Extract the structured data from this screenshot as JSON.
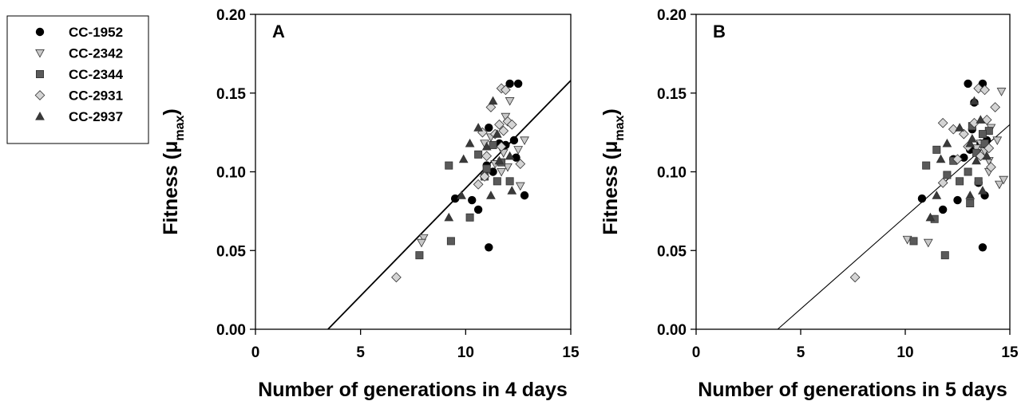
{
  "legend": {
    "items": [
      {
        "name": "CC-1952",
        "marker": "circle",
        "fill": "#000000"
      },
      {
        "name": "CC-2342",
        "marker": "triangle-down",
        "fill": "#c8c8c8"
      },
      {
        "name": "CC-2344",
        "marker": "square",
        "fill": "#5a5a5a"
      },
      {
        "name": "CC-2931",
        "marker": "diamond",
        "fill": "#d4d4d4"
      },
      {
        "name": "CC-2937",
        "marker": "triangle-up",
        "fill": "#3a3a3a"
      }
    ]
  },
  "chart_data": [
    {
      "type": "scatter",
      "panel_label": "A",
      "xlabel": "Number of generations in 4 days",
      "ylabel": "Fitness (μ",
      "ylabel_sub": "max",
      "ylabel_close": ")",
      "xlim": [
        0,
        15
      ],
      "ylim": [
        0,
        0.2
      ],
      "x_ticks": [
        0,
        5,
        10,
        15
      ],
      "y_ticks": [
        0,
        0.05,
        0.1,
        0.15,
        0.2
      ],
      "x_tick_labels": [
        "0",
        "5",
        "10",
        "15"
      ],
      "y_tick_labels": [
        "0.00",
        "0.05",
        "0.10",
        "0.15",
        "0.20"
      ],
      "regression": {
        "x1": 3.45,
        "y1": 0.0,
        "x2": 15.0,
        "y2": 0.158
      },
      "grid": false,
      "series": [
        {
          "name": "CC-1952",
          "points": [
            [
              12.1,
              0.156
            ],
            [
              12.5,
              0.156
            ],
            [
              11.1,
              0.128
            ],
            [
              12.3,
              0.12
            ],
            [
              11.6,
              0.118
            ],
            [
              11.0,
              0.104
            ],
            [
              11.3,
              0.1
            ],
            [
              9.5,
              0.083
            ],
            [
              10.3,
              0.082
            ],
            [
              10.6,
              0.076
            ],
            [
              12.8,
              0.085
            ],
            [
              11.1,
              0.052
            ],
            [
              12.4,
              0.109
            ],
            [
              11.9,
              0.117
            ]
          ]
        },
        {
          "name": "CC-2342",
          "points": [
            [
              12.1,
              0.145
            ],
            [
              11.9,
              0.135
            ],
            [
              12.8,
              0.12
            ],
            [
              12.5,
              0.114
            ],
            [
              11.8,
              0.112
            ],
            [
              12.0,
              0.103
            ],
            [
              11.4,
              0.105
            ],
            [
              10.9,
              0.118
            ],
            [
              12.6,
              0.091
            ],
            [
              11.7,
              0.1
            ],
            [
              8.0,
              0.058
            ],
            [
              7.9,
              0.055
            ],
            [
              11.2,
              0.122
            ]
          ]
        },
        {
          "name": "CC-2344",
          "points": [
            [
              9.2,
              0.104
            ],
            [
              10.6,
              0.111
            ],
            [
              10.9,
              0.097
            ],
            [
              11.3,
              0.117
            ],
            [
              11.7,
              0.106
            ],
            [
              12.1,
              0.094
            ],
            [
              11.0,
              0.102
            ],
            [
              10.2,
              0.071
            ],
            [
              9.3,
              0.056
            ],
            [
              7.8,
              0.047
            ],
            [
              11.5,
              0.094
            ]
          ]
        },
        {
          "name": "CC-2931",
          "points": [
            [
              11.7,
              0.153
            ],
            [
              11.9,
              0.152
            ],
            [
              11.2,
              0.141
            ],
            [
              11.6,
              0.13
            ],
            [
              12.0,
              0.132
            ],
            [
              11.8,
              0.126
            ],
            [
              11.4,
              0.124
            ],
            [
              10.8,
              0.125
            ],
            [
              12.2,
              0.13
            ],
            [
              11.7,
              0.116
            ],
            [
              12.6,
              0.105
            ],
            [
              10.9,
              0.097
            ],
            [
              10.6,
              0.092
            ],
            [
              6.7,
              0.033
            ],
            [
              11.0,
              0.11
            ]
          ]
        },
        {
          "name": "CC-2937",
          "points": [
            [
              11.3,
              0.145
            ],
            [
              10.6,
              0.128
            ],
            [
              11.5,
              0.124
            ],
            [
              10.2,
              0.118
            ],
            [
              11.0,
              0.116
            ],
            [
              9.9,
              0.108
            ],
            [
              12.1,
              0.11
            ],
            [
              11.2,
              0.085
            ],
            [
              12.2,
              0.088
            ],
            [
              9.8,
              0.085
            ],
            [
              9.2,
              0.071
            ],
            [
              11.6,
              0.107
            ]
          ]
        }
      ]
    },
    {
      "type": "scatter",
      "panel_label": "B",
      "xlabel": "Number of generations in 5 days",
      "ylabel": "Fitness (μ",
      "ylabel_sub": "max",
      "ylabel_close": ")",
      "xlim": [
        0,
        15
      ],
      "ylim": [
        0,
        0.2
      ],
      "x_ticks": [
        0,
        5,
        10,
        15
      ],
      "y_ticks": [
        0,
        0.05,
        0.1,
        0.15,
        0.2
      ],
      "x_tick_labels": [
        "0",
        "5",
        "10",
        "15"
      ],
      "y_tick_labels": [
        "0.00",
        "0.05",
        "0.10",
        "0.15",
        "0.20"
      ],
      "regression": {
        "x1": 3.9,
        "y1": 0.0,
        "x2": 15.0,
        "y2": 0.13
      },
      "grid": false,
      "series": [
        {
          "name": "CC-1952",
          "points": [
            [
              13.0,
              0.156
            ],
            [
              13.7,
              0.156
            ],
            [
              13.3,
              0.144
            ],
            [
              13.2,
              0.127
            ],
            [
              13.6,
              0.118
            ],
            [
              13.1,
              0.114
            ],
            [
              12.8,
              0.109
            ],
            [
              12.3,
              0.108
            ],
            [
              10.8,
              0.083
            ],
            [
              11.8,
              0.076
            ],
            [
              12.5,
              0.082
            ],
            [
              13.8,
              0.085
            ],
            [
              13.7,
              0.052
            ],
            [
              13.5,
              0.093
            ],
            [
              13.9,
              0.12
            ]
          ]
        },
        {
          "name": "CC-2342",
          "points": [
            [
              14.6,
              0.151
            ],
            [
              14.1,
              0.128
            ],
            [
              14.4,
              0.12
            ],
            [
              13.8,
              0.113
            ],
            [
              14.0,
              0.107
            ],
            [
              14.5,
              0.092
            ],
            [
              14.7,
              0.095
            ],
            [
              13.6,
              0.118
            ],
            [
              10.1,
              0.057
            ],
            [
              11.1,
              0.055
            ],
            [
              13.4,
              0.115
            ],
            [
              14.0,
              0.1
            ]
          ]
        },
        {
          "name": "CC-2344",
          "points": [
            [
              11.0,
              0.104
            ],
            [
              12.3,
              0.107
            ],
            [
              12.6,
              0.094
            ],
            [
              13.0,
              0.1
            ],
            [
              13.2,
              0.129
            ],
            [
              13.8,
              0.118
            ],
            [
              14.0,
              0.126
            ],
            [
              12.0,
              0.098
            ],
            [
              11.4,
              0.07
            ],
            [
              10.4,
              0.056
            ],
            [
              11.9,
              0.047
            ],
            [
              13.1,
              0.08
            ],
            [
              13.5,
              0.094
            ],
            [
              11.5,
              0.114
            ],
            [
              13.7,
              0.124
            ],
            [
              13.4,
              0.112
            ]
          ]
        },
        {
          "name": "CC-2931",
          "points": [
            [
              13.5,
              0.153
            ],
            [
              13.8,
              0.152
            ],
            [
              14.3,
              0.141
            ],
            [
              13.3,
              0.131
            ],
            [
              11.8,
              0.131
            ],
            [
              13.9,
              0.133
            ],
            [
              12.3,
              0.127
            ],
            [
              12.8,
              0.124
            ],
            [
              12.5,
              0.108
            ],
            [
              14.0,
              0.115
            ],
            [
              14.1,
              0.103
            ],
            [
              11.8,
              0.093
            ],
            [
              7.6,
              0.033
            ],
            [
              13.6,
              0.11
            ],
            [
              13.0,
              0.116
            ]
          ]
        },
        {
          "name": "CC-2937",
          "points": [
            [
              13.3,
              0.145
            ],
            [
              12.6,
              0.128
            ],
            [
              13.6,
              0.133
            ],
            [
              12.0,
              0.118
            ],
            [
              13.1,
              0.118
            ],
            [
              11.7,
              0.108
            ],
            [
              13.9,
              0.11
            ],
            [
              13.1,
              0.085
            ],
            [
              13.7,
              0.088
            ],
            [
              11.5,
              0.085
            ],
            [
              11.2,
              0.071
            ],
            [
              13.4,
              0.107
            ],
            [
              13.2,
              0.121
            ]
          ]
        }
      ]
    }
  ]
}
